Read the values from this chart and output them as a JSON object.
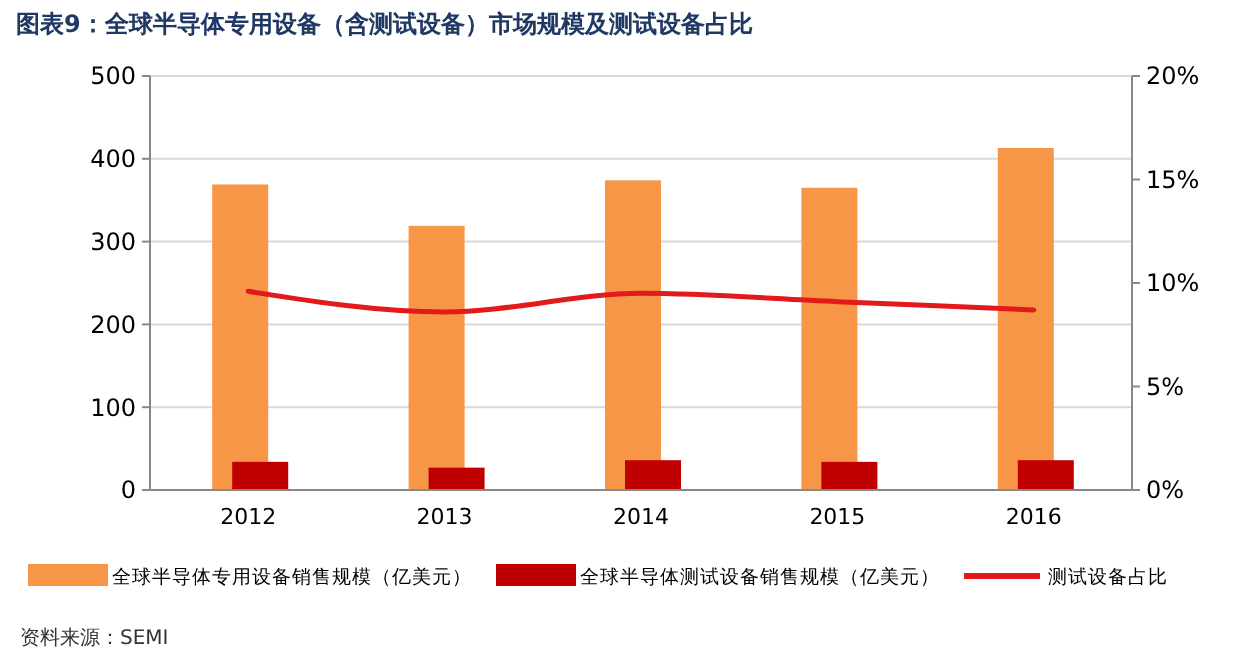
{
  "chart_data": {
    "type": "bar",
    "title": "图表9：全球半导体专用设备（含测试设备）市场规模及测试设备占比",
    "categories": [
      "2012",
      "2013",
      "2014",
      "2015",
      "2016"
    ],
    "series": [
      {
        "name": "全球半导体专用设备销售规模（亿美元）",
        "color": "#f79646",
        "values": [
          369,
          319,
          374,
          365,
          413
        ]
      },
      {
        "name": "全球半导体测试设备销售规模（亿美元）",
        "color": "#c00000",
        "values": [
          34,
          27,
          36,
          34,
          36
        ]
      },
      {
        "name": "测试设备占比",
        "type": "line",
        "axis": "y2",
        "color": "#e31a1c",
        "values": [
          9.6,
          8.6,
          9.5,
          9.1,
          8.7
        ]
      }
    ],
    "ylim": [
      0,
      500
    ],
    "yticks": [
      0,
      100,
      200,
      300,
      400,
      500
    ],
    "y2lim": [
      0,
      20
    ],
    "y2ticks": [
      {
        "value": 0,
        "label": "0%"
      },
      {
        "value": 5,
        "label": "5%"
      },
      {
        "value": 10,
        "label": "10%"
      },
      {
        "value": 15,
        "label": "15%"
      },
      {
        "value": 20,
        "label": "20%"
      }
    ],
    "grid": "y",
    "legend": "bottom",
    "marker": "none",
    "annotations": [
      "资料来源：SEMI"
    ]
  }
}
